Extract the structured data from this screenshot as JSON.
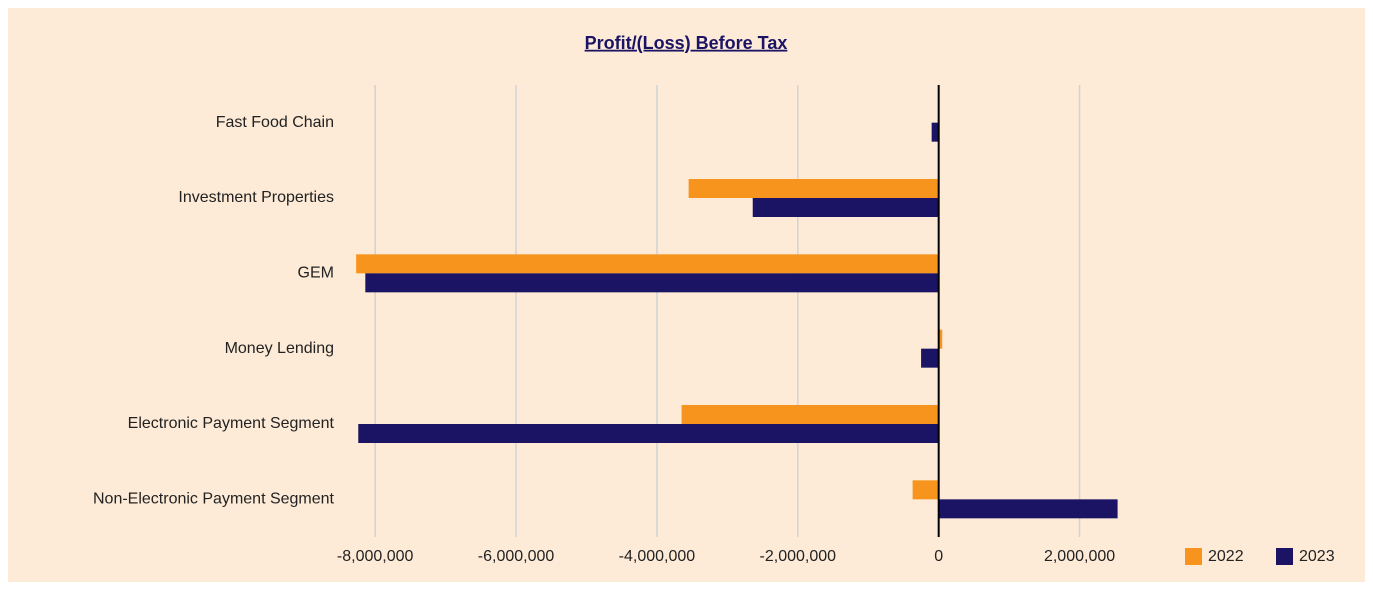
{
  "chart_data": {
    "type": "bar",
    "orientation": "horizontal",
    "title": "Profit/(Loss) Before Tax",
    "categories": [
      "Fast Food Chain",
      "Investment Properties",
      "GEM",
      "Money Lending",
      "Electronic Payment Segment",
      "Non-Electronic Payment Segment"
    ],
    "series": [
      {
        "name": "2022",
        "color": "#f7941d",
        "values": [
          null,
          -3550000,
          -8270000,
          50000,
          -3650000,
          -370000
        ]
      },
      {
        "name": "2023",
        "color": "#1b1464",
        "values": [
          -100000,
          -2640000,
          -8140000,
          -250000,
          -8240000,
          2540000
        ]
      }
    ],
    "xlim": [
      -8400000,
      3000000
    ],
    "xticks": [
      {
        "value": -8000000,
        "label": "-8,000,000"
      },
      {
        "value": -6000000,
        "label": "-6,000,000"
      },
      {
        "value": -4000000,
        "label": "-4,000,000"
      },
      {
        "value": -2000000,
        "label": "-2,000,000"
      },
      0,
      {
        "value": 2000000,
        "label": "2,000,000"
      }
    ],
    "grid": true,
    "legend": "lower right"
  }
}
